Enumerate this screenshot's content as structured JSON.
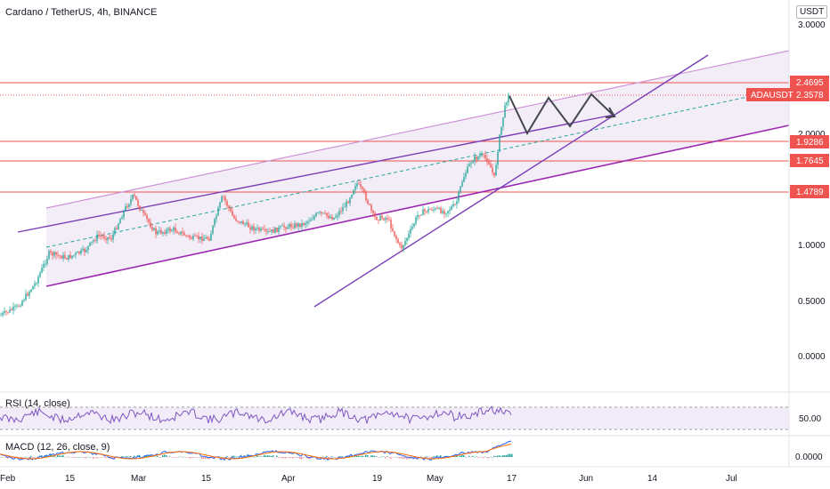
{
  "header": {
    "title": "Cardano / TetherUS, 4h, BINANCE",
    "currency": "USDT"
  },
  "colors": {
    "up": "#26a69a",
    "down": "#ef5350",
    "hline": "#ef5350",
    "channel": "#9c27b0",
    "trend": "#7b3fb5",
    "mid": "#26a69a",
    "path": "#434651",
    "rsi": "#7e57c2",
    "macd": "#2962ff",
    "signal": "#ff6d00"
  },
  "chart_data": [
    {
      "type": "candlestick",
      "title": "Cardano / TetherUS, 4h, BINANCE",
      "yaxis_ticks": [
        "3.0000",
        "2.0000",
        "1.0000",
        "0.5000",
        "0.0000"
      ],
      "x_ticks": [
        "Feb",
        "15",
        "Mar",
        "15",
        "Apr",
        "19",
        "May",
        "17",
        "Jun",
        "14",
        "Jul"
      ],
      "price_lines": [
        {
          "label": "2.4695",
          "value": 2.4695
        },
        {
          "label": "1.9286",
          "value": 1.9286
        },
        {
          "label": "1.7645",
          "value": 1.7645
        },
        {
          "label": "1.4789",
          "value": 1.4789
        }
      ],
      "last_price": {
        "label": "ADAUSDT",
        "value": "2.3578"
      },
      "approx_series_start_end": [
        0.33,
        2.36
      ]
    },
    {
      "type": "line",
      "title": "RSI (14, close)",
      "y_ticks": [
        "50.00"
      ]
    },
    {
      "type": "line",
      "title": "MACD (12, 26, close, 9)",
      "y_ticks": [
        "0.0000"
      ]
    }
  ],
  "panes": {
    "rsi_label": "RSI (14, close)",
    "macd_label": "MACD (12, 26, close, 9)"
  }
}
